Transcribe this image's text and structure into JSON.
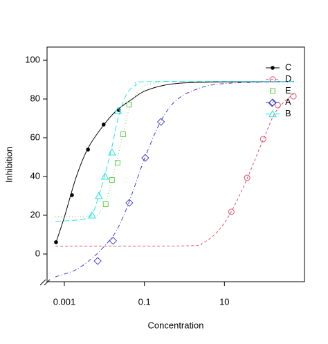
{
  "chart_data": {
    "type": "scatter",
    "xlabel": "Concentration",
    "ylabel": "Inhibition",
    "log_x": true,
    "xlim": [
      0.00037,
      1000
    ],
    "xticks": [
      0.001,
      0.1,
      10
    ],
    "ylim": [
      -14.3,
      106.8
    ],
    "yticks": [
      0,
      20,
      40,
      60,
      80,
      100
    ],
    "legend": "top-right",
    "series": [
      {
        "name": "C",
        "color": "#000000",
        "marker": "filled-circle",
        "dash": "none",
        "x": [
          0.00062,
          0.00155,
          0.0039,
          0.0096,
          0.023
        ],
        "values": [
          6.1,
          30.4,
          53.9,
          66.8,
          74.3
        ],
        "curve_x": [
          0.00062,
          0.001,
          0.002,
          0.004,
          0.01,
          0.02,
          0.05,
          0.1,
          0.3,
          1,
          10,
          550
        ],
        "curve_y": [
          6,
          19,
          40,
          55,
          67,
          74,
          80,
          84,
          87,
          88.3,
          88.8,
          89
        ]
      },
      {
        "name": "D",
        "color": "#DF536B",
        "marker": "circle",
        "dash": "4,3",
        "x": [
          14.9,
          37,
          93,
          215,
          530
        ],
        "values": [
          21.8,
          39.3,
          59.3,
          76.8,
          81.4
        ],
        "curve_x": [
          0.0006,
          1,
          3,
          7,
          15,
          37,
          93,
          200,
          550
        ],
        "curve_y": [
          4,
          4.2,
          6,
          12,
          22,
          39,
          59,
          74,
          83
        ]
      },
      {
        "name": "E",
        "color": "#61D04F",
        "marker": "square",
        "dash": "1,3",
        "x": [
          0.0108,
          0.0155,
          0.0214,
          0.0294,
          0.042
        ],
        "values": [
          25.7,
          38.2,
          47.1,
          61.8,
          77.1
        ],
        "curve_x": [
          0.0006,
          0.005,
          0.008,
          0.011,
          0.015,
          0.021,
          0.03,
          0.042,
          0.07,
          0.15,
          1,
          550
        ],
        "curve_y": [
          19.3,
          19.5,
          22,
          27,
          37,
          49,
          63,
          75,
          84,
          88,
          89,
          89
        ]
      },
      {
        "name": "A",
        "color": "#4040D0",
        "marker": "diamond",
        "dash": "6,3,1,3",
        "x": [
          0.0068,
          0.0165,
          0.042,
          0.105,
          0.26,
          156
        ],
        "values": [
          -3.6,
          6.8,
          26.4,
          49.6,
          68.2,
          77.9
        ],
        "curve_x": [
          0.0006,
          0.002,
          0.005,
          0.01,
          0.02,
          0.04,
          0.1,
          0.25,
          0.6,
          2,
          10,
          550
        ],
        "curve_y": [
          -11.8,
          -8,
          -2,
          4,
          12,
          26,
          49,
          68,
          79,
          85,
          88,
          89
        ]
      },
      {
        "name": "B",
        "color": "#28E2E5",
        "marker": "triangle",
        "dash": "8,4",
        "x": [
          0.0049,
          0.0073,
          0.0104,
          0.0155,
          0.022
        ],
        "values": [
          20,
          30,
          40,
          52.5,
          73.9
        ],
        "curve_x": [
          0.0006,
          0.003,
          0.005,
          0.007,
          0.01,
          0.015,
          0.022,
          0.035,
          0.06,
          0.15,
          550
        ],
        "curve_y": [
          16.8,
          18,
          21,
          29,
          40,
          54,
          70,
          82,
          87,
          89,
          89
        ]
      }
    ]
  }
}
